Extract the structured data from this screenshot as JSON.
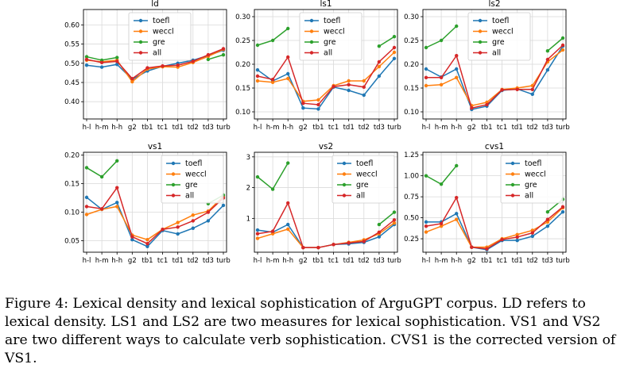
{
  "caption": "Figure 4: Lexical density and lexical sophistication of ArguGPT corpus. LD refers to lexical density. LS1 and LS2 are two measures for lexical sophistication. VS1 and VS2 are two different ways to calculate verb sophistication. CVS1 is the corrected version of VS1.",
  "colors": {
    "toefl": "#1f77b4",
    "weccl": "#ff7f0e",
    "gre": "#2ca02c",
    "all": "#d62728"
  },
  "chart_data": [
    {
      "type": "line",
      "title": "ld",
      "categories": [
        "h-l",
        "h-m",
        "h-h",
        "g2",
        "tb1",
        "tc1",
        "td1",
        "td2",
        "td3",
        "turb"
      ],
      "ylim": [
        0.355,
        0.64
      ],
      "yticks": [
        "0.40",
        "0.45",
        "0.50",
        "0.55",
        "0.60"
      ],
      "grid": true,
      "legend": "top-center",
      "series": [
        {
          "name": "toefl",
          "values": [
            0.495,
            0.49,
            0.497,
            0.458,
            0.48,
            0.492,
            0.5,
            0.508,
            0.52,
            0.534
          ]
        },
        {
          "name": "weccl",
          "values": [
            0.508,
            0.504,
            0.508,
            0.452,
            0.485,
            0.491,
            0.49,
            0.502,
            0.518,
            0.536
          ]
        },
        {
          "name": "gre",
          "values": [
            0.517,
            0.508,
            0.515,
            null,
            null,
            null,
            null,
            null,
            0.51,
            0.522
          ]
        },
        {
          "name": "all",
          "values": [
            0.51,
            0.502,
            0.505,
            0.46,
            0.488,
            0.493,
            0.495,
            0.505,
            0.522,
            0.538
          ]
        }
      ]
    },
    {
      "type": "line",
      "title": "ls1",
      "categories": [
        "h-l",
        "h-m",
        "h-h",
        "g2",
        "tb1",
        "tc1",
        "td1",
        "td2",
        "td3",
        "turb"
      ],
      "ylim": [
        0.085,
        0.315
      ],
      "yticks": [
        "0.10",
        "0.15",
        "0.20",
        "0.25",
        "0.30"
      ],
      "grid": true,
      "legend": "top-center",
      "series": [
        {
          "name": "toefl",
          "values": [
            0.188,
            0.165,
            0.18,
            0.108,
            0.106,
            0.152,
            0.145,
            0.135,
            0.175,
            0.212
          ]
        },
        {
          "name": "weccl",
          "values": [
            0.165,
            0.162,
            0.17,
            0.122,
            0.125,
            0.155,
            0.165,
            0.165,
            0.195,
            0.225
          ]
        },
        {
          "name": "gre",
          "values": [
            0.24,
            0.25,
            0.275,
            null,
            null,
            null,
            null,
            null,
            0.238,
            0.258
          ]
        },
        {
          "name": "all",
          "values": [
            0.175,
            0.168,
            0.215,
            0.118,
            0.115,
            0.153,
            0.157,
            0.152,
            0.205,
            0.235
          ]
        }
      ]
    },
    {
      "type": "line",
      "title": "ls2",
      "categories": [
        "h-l",
        "h-m",
        "h-h",
        "g2",
        "tb1",
        "tc1",
        "td1",
        "td2",
        "td3",
        "turb"
      ],
      "ylim": [
        0.085,
        0.315
      ],
      "yticks": [
        "0.10",
        "0.15",
        "0.20",
        "0.25",
        "0.30"
      ],
      "grid": true,
      "legend": "top-center",
      "series": [
        {
          "name": "toefl",
          "values": [
            0.19,
            0.173,
            0.19,
            0.105,
            0.112,
            0.145,
            0.148,
            0.137,
            0.188,
            0.238
          ]
        },
        {
          "name": "weccl",
          "values": [
            0.155,
            0.157,
            0.172,
            0.113,
            0.12,
            0.147,
            0.15,
            0.155,
            0.205,
            0.23
          ]
        },
        {
          "name": "gre",
          "values": [
            0.235,
            0.25,
            0.28,
            null,
            null,
            null,
            null,
            null,
            0.228,
            0.255
          ]
        },
        {
          "name": "all",
          "values": [
            0.172,
            0.172,
            0.218,
            0.108,
            0.115,
            0.146,
            0.147,
            0.147,
            0.21,
            0.24
          ]
        }
      ]
    },
    {
      "type": "line",
      "title": "vs1",
      "categories": [
        "h-l",
        "h-m",
        "h-h",
        "g2",
        "tb1",
        "tc1",
        "td1",
        "td2",
        "td3",
        "turb"
      ],
      "ylim": [
        0.03,
        0.205
      ],
      "yticks": [
        "0.05",
        "0.10",
        "0.15",
        "0.20"
      ],
      "grid": true,
      "legend": "top-right",
      "series": [
        {
          "name": "toefl",
          "values": [
            0.126,
            0.105,
            0.117,
            0.052,
            0.04,
            0.068,
            0.062,
            0.072,
            0.085,
            0.112
          ]
        },
        {
          "name": "weccl",
          "values": [
            0.096,
            0.105,
            0.11,
            0.06,
            0.052,
            0.07,
            0.082,
            0.095,
            0.102,
            0.128
          ]
        },
        {
          "name": "gre",
          "values": [
            0.178,
            0.162,
            0.19,
            null,
            null,
            null,
            null,
            null,
            0.115,
            0.13
          ]
        },
        {
          "name": "all",
          "values": [
            0.11,
            0.106,
            0.143,
            0.057,
            0.045,
            0.07,
            0.074,
            0.085,
            0.1,
            0.125
          ]
        }
      ]
    },
    {
      "type": "line",
      "title": "vs2",
      "categories": [
        "h-l",
        "h-m",
        "h-h",
        "g2",
        "tb1",
        "tc1",
        "td1",
        "td2",
        "td3",
        "turb"
      ],
      "ylim": [
        -0.1,
        3.15
      ],
      "yticks": [
        "1",
        "2",
        "3"
      ],
      "ytick_values": [
        1,
        2,
        3
      ],
      "grid": true,
      "legend": "top-right",
      "series": [
        {
          "name": "toefl",
          "values": [
            0.62,
            0.55,
            0.8,
            0.05,
            0.05,
            0.15,
            0.17,
            0.22,
            0.4,
            0.8
          ]
        },
        {
          "name": "weccl",
          "values": [
            0.35,
            0.5,
            0.65,
            0.05,
            0.05,
            0.15,
            0.22,
            0.3,
            0.5,
            0.85
          ]
        },
        {
          "name": "gre",
          "values": [
            2.35,
            1.95,
            2.8,
            null,
            null,
            null,
            null,
            null,
            0.8,
            1.2
          ]
        },
        {
          "name": "all",
          "values": [
            0.5,
            0.58,
            1.5,
            0.05,
            0.05,
            0.15,
            0.2,
            0.25,
            0.55,
            0.95
          ]
        }
      ]
    },
    {
      "type": "line",
      "title": "cvs1",
      "categories": [
        "h-l",
        "h-m",
        "h-h",
        "g2",
        "tb1",
        "tc1",
        "td1",
        "td2",
        "td3",
        "turb"
      ],
      "ylim": [
        0.09,
        1.28
      ],
      "yticks": [
        "0.25",
        "0.50",
        "0.75",
        "1.00",
        "1.25"
      ],
      "grid": true,
      "legend": "top-right",
      "series": [
        {
          "name": "toefl",
          "values": [
            0.45,
            0.45,
            0.55,
            0.15,
            0.12,
            0.23,
            0.23,
            0.28,
            0.4,
            0.57
          ]
        },
        {
          "name": "weccl",
          "values": [
            0.33,
            0.4,
            0.48,
            0.15,
            0.15,
            0.25,
            0.3,
            0.35,
            0.45,
            0.62
          ]
        },
        {
          "name": "gre",
          "values": [
            1.0,
            0.9,
            1.12,
            null,
            null,
            null,
            null,
            null,
            0.57,
            0.72
          ]
        },
        {
          "name": "all",
          "values": [
            0.4,
            0.43,
            0.74,
            0.15,
            0.13,
            0.24,
            0.27,
            0.32,
            0.48,
            0.63
          ]
        }
      ]
    }
  ]
}
